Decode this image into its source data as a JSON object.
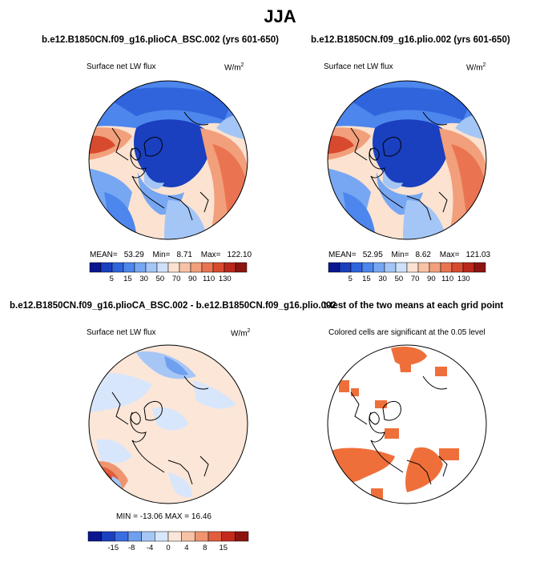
{
  "title": "JJA",
  "panels": [
    {
      "title": "b.e12.B1850CN.f09_g16.plioCA_BSC.002 (yrs 601-650)",
      "field": "Surface net LW flux",
      "units_base": "W/m",
      "units_exp": "2",
      "stats": {
        "mean_label": "MEAN=",
        "mean": "53.29",
        "min_label": "Min=",
        "min": "8.71",
        "max_label": "Max=",
        "max": "122.10"
      },
      "colorbar_labels": [
        "5",
        "15",
        "30",
        "50",
        "70",
        "90",
        "110",
        "130"
      ]
    },
    {
      "title": "b.e12.B1850CN.f09_g16.plio.002 (yrs 601-650)",
      "field": "Surface net LW flux",
      "units_base": "W/m",
      "units_exp": "2",
      "stats": {
        "mean_label": "MEAN=",
        "mean": "52.95",
        "min_label": "Min=",
        "min": "8.62",
        "max_label": "Max=",
        "max": "121.03"
      },
      "colorbar_labels": [
        "5",
        "15",
        "30",
        "50",
        "70",
        "90",
        "110",
        "130"
      ]
    },
    {
      "title": "b.e12.B1850CN.f09_g16.plioCA_BSC.002 - b.e12.B1850CN.f09_g16.plio.002",
      "field": "Surface net LW flux",
      "units_base": "W/m",
      "units_exp": "2",
      "stats_text": "MIN = -13.06  MAX =  16.46",
      "colorbar_labels": [
        "-15",
        "-8",
        "-4",
        "0",
        "4",
        "8",
        "15"
      ]
    },
    {
      "title": "t-test of the two means at each grid point",
      "note": "Colored cells are significant at the 0.05 level"
    }
  ],
  "colors": {
    "seq": [
      "#08168f",
      "#1a3fbf",
      "#2f64dd",
      "#4d86ec",
      "#77a7f2",
      "#a4c6f6",
      "#cfe0fa",
      "#fbe2d1",
      "#f7c2a5",
      "#f29f7b",
      "#ea7451",
      "#d84a2e",
      "#b9281a",
      "#8c1410"
    ],
    "div": [
      "#08168f",
      "#1a3fbf",
      "#3a6ee0",
      "#6f9fef",
      "#a6c6f6",
      "#d8e6fb",
      "#fbe6d8",
      "#f6c1a4",
      "#ee9570",
      "#e05e3c",
      "#c32a1c",
      "#8c1410"
    ],
    "sig": "#ef6f3a"
  }
}
